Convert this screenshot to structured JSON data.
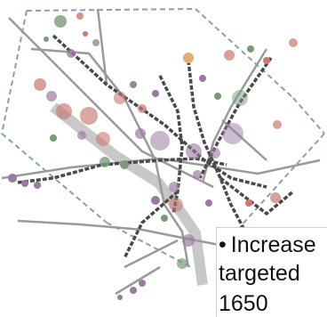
{
  "map": {
    "colors": {
      "boundary": "#8aa0b0",
      "streets": "#9a9a9a",
      "rail": "#4a4a4a",
      "river": "#c8c8c8",
      "station_green": "#7a9a7a",
      "station_red": "#c8786e",
      "station_purple": "#9a7aa0",
      "station_orange": "#e0b070"
    }
  },
  "callout": {
    "bullet": "•",
    "line1": "Increase",
    "line2": "targeted",
    "line3": "1650"
  }
}
